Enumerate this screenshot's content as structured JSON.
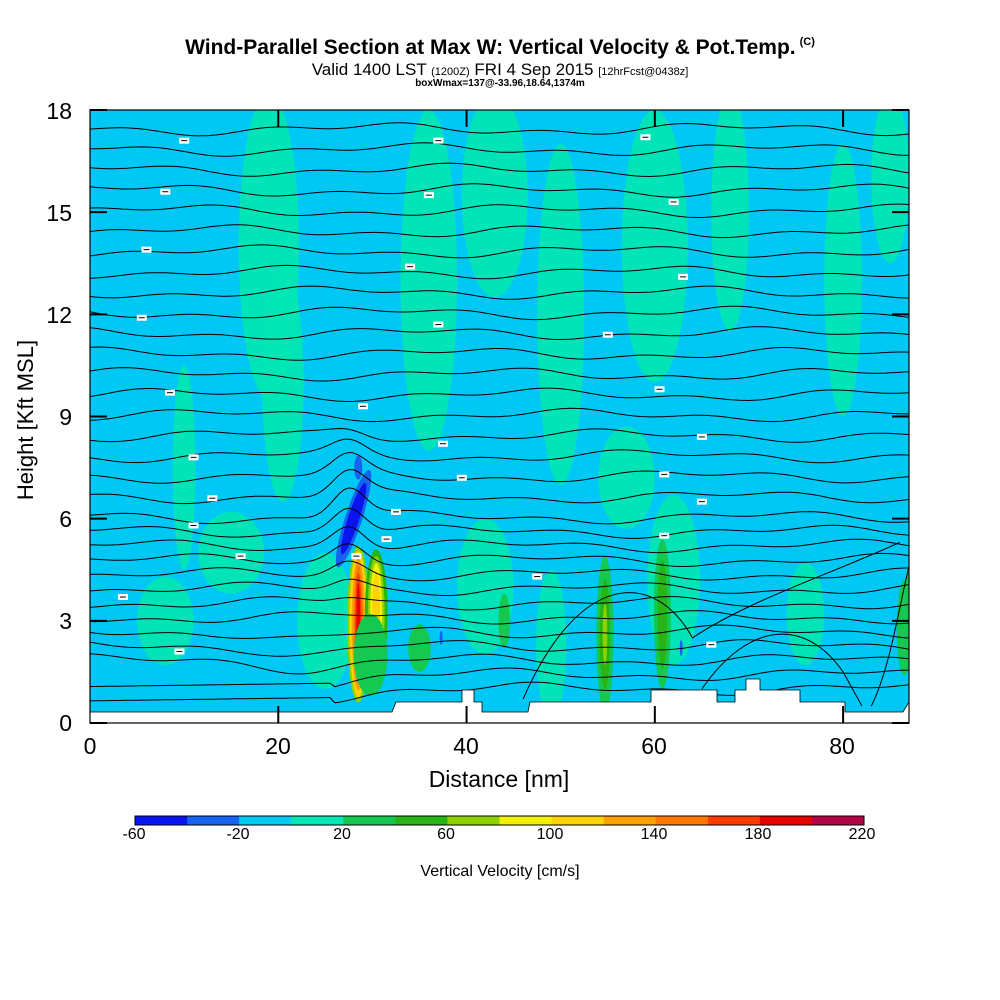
{
  "title": "Wind-Parallel Section at Max W: Vertical Velocity & Pot.Temp.",
  "title_mark": "(C)",
  "subtitle_valid": "Valid 1400 LST",
  "subtitle_utc": "(1200Z)",
  "subtitle_date": "FRI 4 Sep 2015",
  "subtitle_fcst": "[12hrFcst@0438z]",
  "box_text": "boxWmax=137@-33.96,18.64,1374m",
  "chart_data": {
    "type": "heatmap",
    "xlabel": "Distance [nm]",
    "ylabel": "Height [Kft MSL]",
    "xlim": [
      0,
      87
    ],
    "ylim": [
      0,
      18
    ],
    "x_ticks": [
      "0",
      "20",
      "40",
      "60",
      "80"
    ],
    "y_ticks": [
      "0",
      "3",
      "6",
      "9",
      "12",
      "15",
      "18"
    ],
    "colorbar": {
      "title": "Vertical Velocity [cm/s]",
      "labels": [
        "-60",
        "-20",
        "20",
        "60",
        "100",
        "140",
        "180",
        "220"
      ],
      "colors": [
        "#0a14f0",
        "#1464f0",
        "#00c8f5",
        "#00e6b4",
        "#14c850",
        "#28b414",
        "#8cd200",
        "#f0f000",
        "#ffd200",
        "#ffa000",
        "#ff7800",
        "#ff3c00",
        "#e60000",
        "#b40046"
      ]
    },
    "background_color": "#00c8f5",
    "max_w": 137,
    "updraft_x": 28.5,
    "downdraft_x": 27.5
  }
}
